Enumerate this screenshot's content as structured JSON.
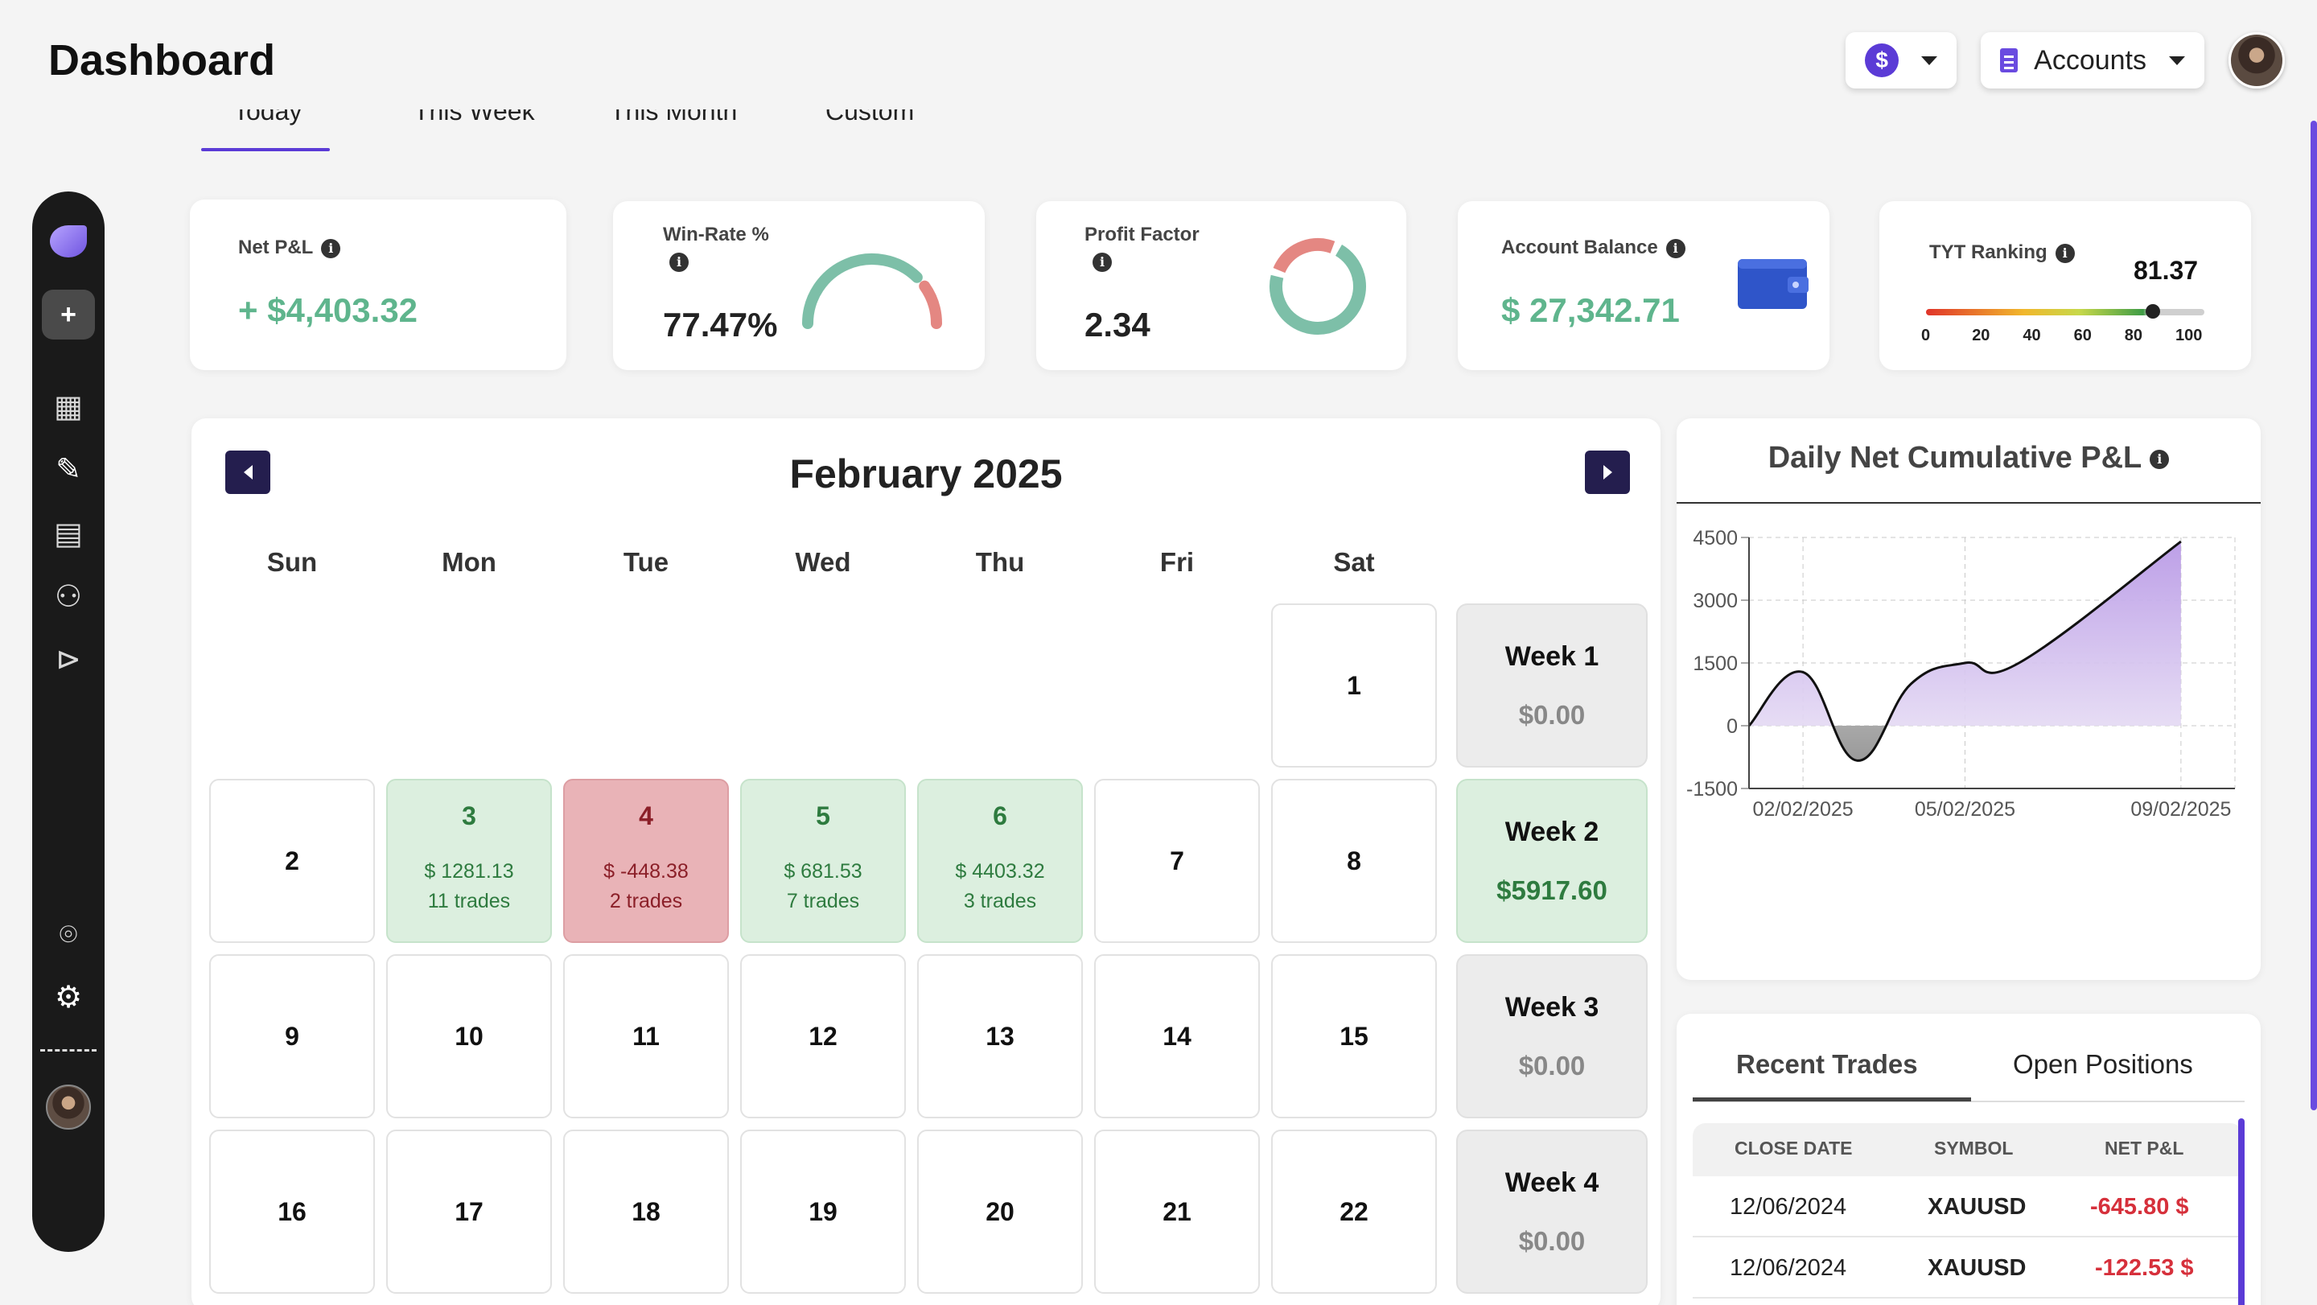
{
  "header": {
    "title": "Dashboard",
    "currency_symbol": "$",
    "accounts_label": "Accounts"
  },
  "range_tabs": [
    "Today",
    "This Week",
    "This Month",
    "Custom"
  ],
  "sidebar": {
    "icons": [
      "logo-icon",
      "add-icon",
      "dashboard-grid-icon",
      "pencil-icon",
      "journal-icon",
      "network-icon",
      "play-icon",
      "help-chat-icon",
      "gear-icon",
      "avatar"
    ]
  },
  "stats": {
    "net_pnl": {
      "label": "Net P&L",
      "value": "+ $4,403.32"
    },
    "win_rate": {
      "label": "Win-Rate %",
      "value": "77.47%",
      "fraction": 0.7747
    },
    "profit_factor": {
      "label": "Profit Factor",
      "value": "2.34"
    },
    "account_balance": {
      "label": "Account Balance",
      "value": "$ 27,342.71"
    },
    "tyt_ranking": {
      "label": "TYT Ranking",
      "value": "81.37",
      "scale": [
        "0",
        "20",
        "40",
        "60",
        "80",
        "100"
      ],
      "level": 81.37
    }
  },
  "calendar": {
    "title": "February 2025",
    "weekdays": [
      "Sun",
      "Mon",
      "Tue",
      "Wed",
      "Thu",
      "Fri",
      "Sat"
    ],
    "weeks": [
      {
        "label": "Week 1",
        "value": "$0.00",
        "days": [
          null,
          null,
          null,
          null,
          null,
          null,
          {
            "n": "1"
          }
        ]
      },
      {
        "label": "Week 2",
        "value": "$5917.60",
        "positive": true,
        "days": [
          {
            "n": "2"
          },
          {
            "n": "3",
            "pnl": "$ 1281.13",
            "trades": "11 trades",
            "state": "win"
          },
          {
            "n": "4",
            "pnl": "$ -448.38",
            "trades": "2 trades",
            "state": "loss"
          },
          {
            "n": "5",
            "pnl": "$ 681.53",
            "trades": "7 trades",
            "state": "win"
          },
          {
            "n": "6",
            "pnl": "$ 4403.32",
            "trades": "3 trades",
            "state": "win"
          },
          {
            "n": "7"
          },
          {
            "n": "8"
          }
        ]
      },
      {
        "label": "Week 3",
        "value": "$0.00",
        "days": [
          {
            "n": "9"
          },
          {
            "n": "10"
          },
          {
            "n": "11"
          },
          {
            "n": "12"
          },
          {
            "n": "13"
          },
          {
            "n": "14"
          },
          {
            "n": "15"
          }
        ]
      },
      {
        "label": "Week 4",
        "value": "$0.00",
        "days": [
          {
            "n": "16"
          },
          {
            "n": "17"
          },
          {
            "n": "18"
          },
          {
            "n": "19"
          },
          {
            "n": "20"
          },
          {
            "n": "21"
          },
          {
            "n": "22"
          }
        ]
      }
    ]
  },
  "chart_data": {
    "type": "area",
    "title": "Daily Net Cumulative P&L",
    "ylim": [
      -1500,
      4500
    ],
    "yticks": [
      "4500",
      "3000",
      "1500",
      "0",
      "-1500"
    ],
    "xticks": [
      "02/02/2025",
      "05/02/2025",
      "09/02/2025"
    ],
    "x": [
      "01/02/2025",
      "02/02/2025",
      "03/02/2025",
      "04/02/2025",
      "05/02/2025",
      "06/02/2025",
      "09/02/2025"
    ],
    "values": [
      0,
      1281,
      -833,
      1000,
      1500,
      1500,
      4403
    ],
    "grid": true
  },
  "trades": {
    "tabs": [
      "Recent Trades",
      "Open Positions"
    ],
    "columns": [
      "CLOSE DATE",
      "SYMBOL",
      "NET P&L"
    ],
    "rows": [
      {
        "date": "12/06/2024",
        "symbol": "XAUUSD",
        "pnl": "-645.80 $"
      },
      {
        "date": "12/06/2024",
        "symbol": "XAUUSD",
        "pnl": "-122.53 $"
      }
    ]
  },
  "colors": {
    "accent": "#5b3bd6",
    "positive": "#5fb58d",
    "negative": "#d6303b",
    "area_fill": "#c7b3ea",
    "donut_good": "#7dbfa8",
    "donut_bad": "#e48782"
  }
}
